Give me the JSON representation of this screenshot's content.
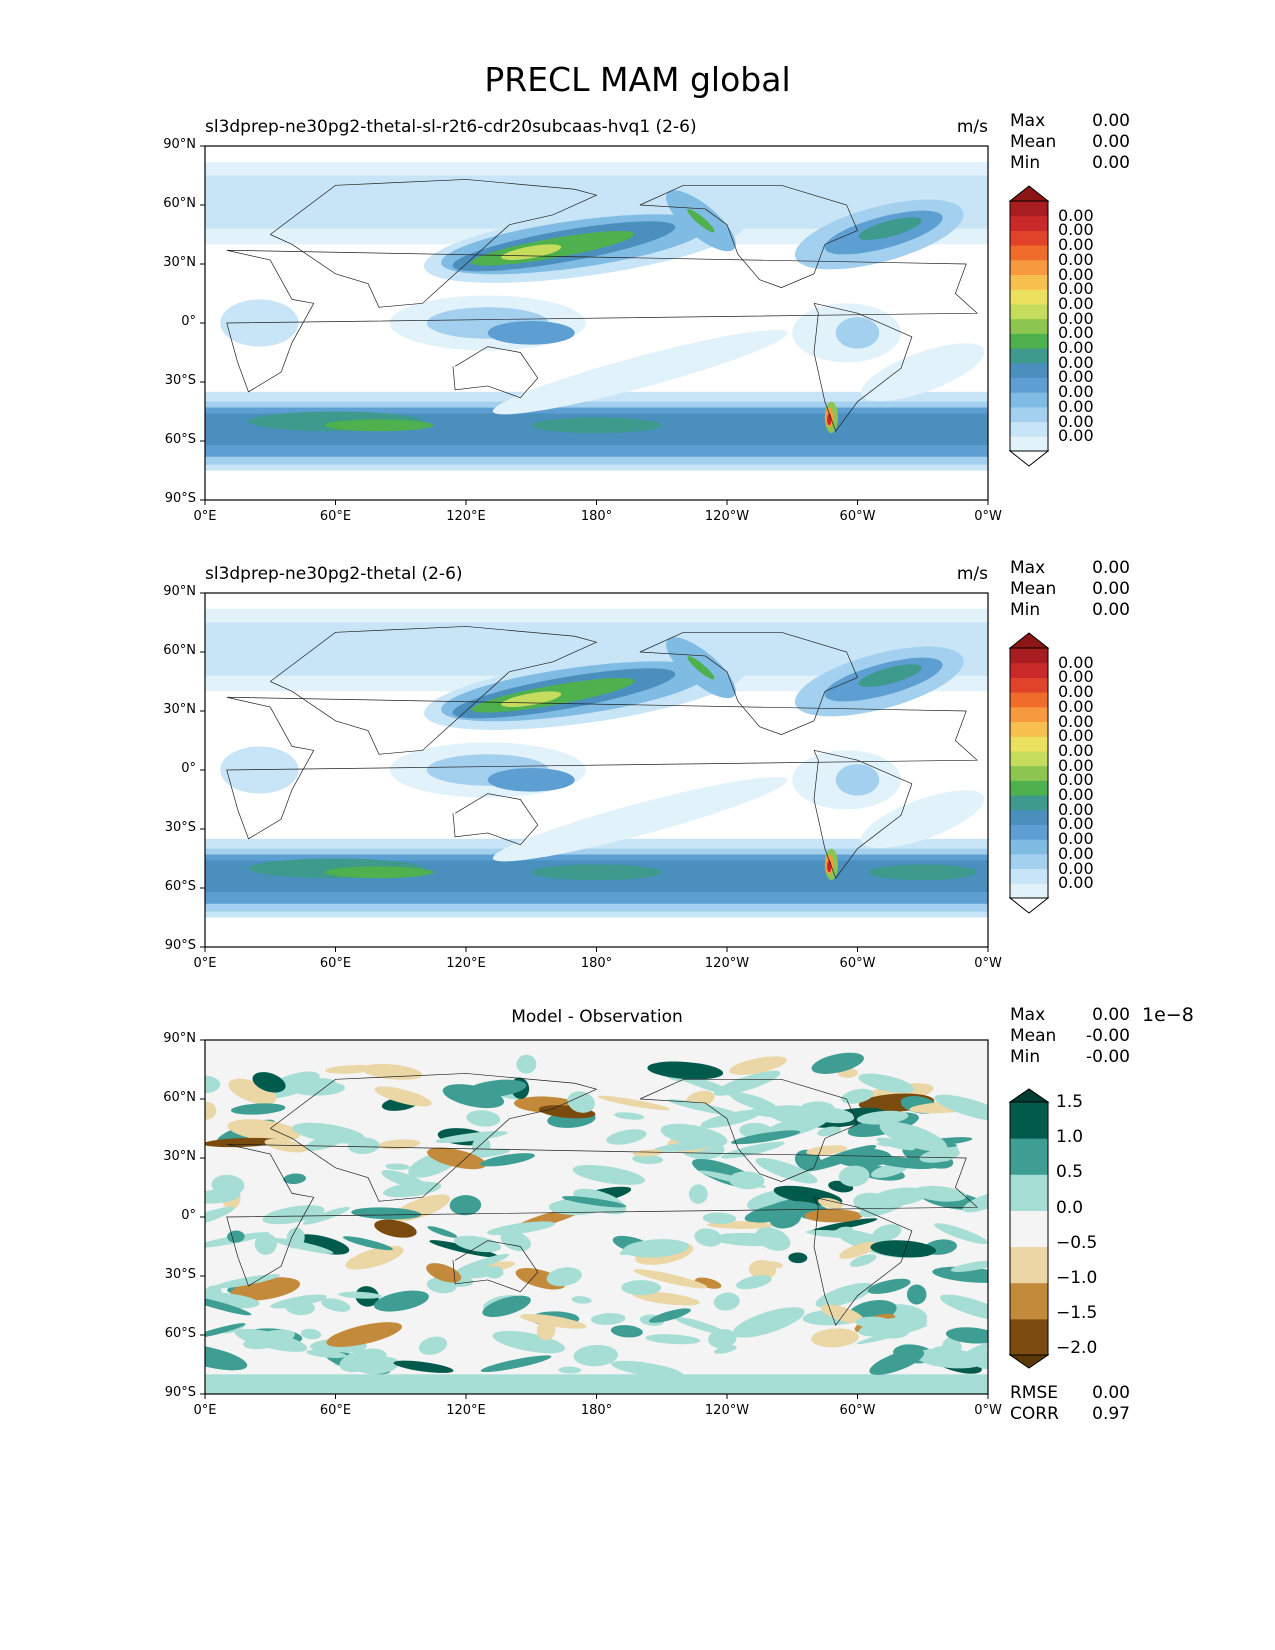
{
  "figure_title": "PRECL MAM global",
  "chart_data": [
    {
      "type": "heatmap",
      "title": "sl3dprep-ne30pg2-thetal-sl-r2t6-cdr20subcaas-hvq1 (2-6)",
      "units": "m/s",
      "stats": {
        "max_label": "Max",
        "max": "0.00",
        "mean_label": "Mean",
        "mean": "0.00",
        "min_label": "Min",
        "min": "0.00"
      },
      "xticks": [
        "0°E",
        "60°E",
        "120°E",
        "180°",
        "120°W",
        "60°W",
        "0°W"
      ],
      "yticks": [
        "90°N",
        "60°N",
        "30°N",
        "0°",
        "30°S",
        "60°S",
        "90°S"
      ],
      "xlim": [
        0,
        360
      ],
      "ylim": [
        -90,
        90
      ],
      "colorbar_labels": [
        "0.00",
        "0.00",
        "0.00",
        "0.00",
        "0.00",
        "0.00",
        "0.00",
        "0.00",
        "0.00",
        "0.00",
        "0.00",
        "0.00",
        "0.00",
        "0.00",
        "0.00",
        "0.00"
      ],
      "colorbar_colors": [
        "#ffffff",
        "#e1f2fb",
        "#c7e5f6",
        "#a3d0ee",
        "#80bbe4",
        "#5d9fd2",
        "#4b8fbf",
        "#3e9a8c",
        "#4fb04e",
        "#8cc651",
        "#c6dc5d",
        "#ece05f",
        "#f7c04f",
        "#f79a3f",
        "#ef6c2b",
        "#e0422a",
        "#c92929",
        "#a81d1f",
        "#8c1515"
      ],
      "colorbar_extend": "both"
    },
    {
      "type": "heatmap",
      "title": "sl3dprep-ne30pg2-thetal (2-6)",
      "units": "m/s",
      "stats": {
        "max_label": "Max",
        "max": "0.00",
        "mean_label": "Mean",
        "mean": "0.00",
        "min_label": "Min",
        "min": "0.00"
      },
      "xticks": [
        "0°E",
        "60°E",
        "120°E",
        "180°",
        "120°W",
        "60°W",
        "0°W"
      ],
      "yticks": [
        "90°N",
        "60°N",
        "30°N",
        "0°",
        "30°S",
        "60°S",
        "90°S"
      ],
      "xlim": [
        0,
        360
      ],
      "ylim": [
        -90,
        90
      ],
      "colorbar_labels": [
        "0.00",
        "0.00",
        "0.00",
        "0.00",
        "0.00",
        "0.00",
        "0.00",
        "0.00",
        "0.00",
        "0.00",
        "0.00",
        "0.00",
        "0.00",
        "0.00",
        "0.00",
        "0.00"
      ],
      "colorbar_colors": [
        "#ffffff",
        "#e1f2fb",
        "#c7e5f6",
        "#a3d0ee",
        "#80bbe4",
        "#5d9fd2",
        "#4b8fbf",
        "#3e9a8c",
        "#4fb04e",
        "#8cc651",
        "#c6dc5d",
        "#ece05f",
        "#f7c04f",
        "#f79a3f",
        "#ef6c2b",
        "#e0422a",
        "#c92929",
        "#a81d1f",
        "#8c1515"
      ],
      "colorbar_extend": "both"
    },
    {
      "type": "heatmap",
      "title": "Model - Observation",
      "stats": {
        "max_label": "Max",
        "max": "0.00",
        "mean_label": "Mean",
        "mean": "-0.00",
        "min_label": "Min",
        "min": "-0.00"
      },
      "extra_stats": {
        "rmse_label": "RMSE",
        "rmse": "0.00",
        "corr_label": "CORR",
        "corr": "0.97"
      },
      "xticks": [
        "0°E",
        "60°E",
        "120°E",
        "180°",
        "120°W",
        "60°W",
        "0°W"
      ],
      "yticks": [
        "90°N",
        "60°N",
        "30°N",
        "0°",
        "30°S",
        "60°S",
        "90°S"
      ],
      "xlim": [
        0,
        360
      ],
      "ylim": [
        -90,
        90
      ],
      "colorbar_scale": "1e−8",
      "colorbar_labels": [
        "1.5",
        "1.0",
        "0.5",
        "0.0",
        "−0.5",
        "−1.0",
        "−1.5",
        "−2.0"
      ],
      "colorbar_colors": [
        "#7a4a0e",
        "#c38a3c",
        "#ebd6a6",
        "#f3f4f3",
        "#a6ddd4",
        "#3e9e93",
        "#015b4d"
      ],
      "colorbar_extend_colors": [
        "#5c3708",
        "#003d33"
      ],
      "colorbar_extend": "both"
    }
  ]
}
